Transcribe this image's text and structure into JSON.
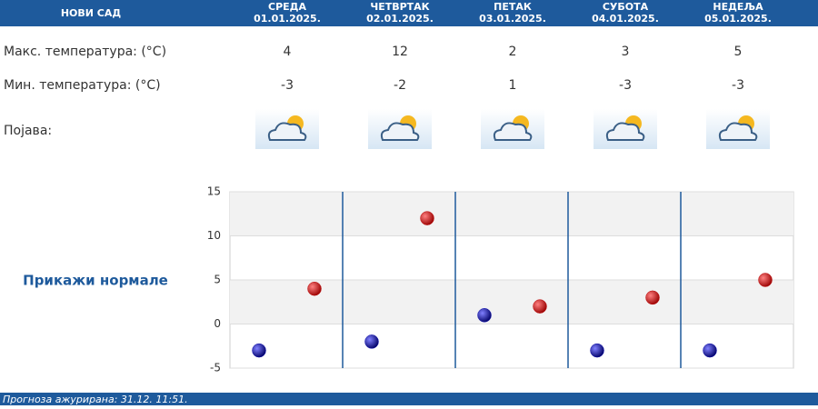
{
  "header": {
    "city": "НОВИ САД"
  },
  "days": [
    {
      "day": "СРЕДА",
      "date": "01.01.2025."
    },
    {
      "day": "ЧЕТВРТАК",
      "date": "02.01.2025."
    },
    {
      "day": "ПЕТАК",
      "date": "03.01.2025."
    },
    {
      "day": "СУБОТА",
      "date": "04.01.2025."
    },
    {
      "day": "НЕДЕЉА",
      "date": "05.01.2025."
    }
  ],
  "rows": {
    "max_label": "Макс. температура: (°C)",
    "min_label": "Мин. температура: (°C)",
    "phenomenon_label": "Појава:"
  },
  "normals_link": "Прикажи нормале",
  "footer": "Прогноза ажурирана:  31.12. 11:51.",
  "chart_data": {
    "type": "scatter",
    "series": [
      {
        "name": "Мин. температура",
        "color": "#1010b0",
        "values": [
          -3,
          -2,
          1,
          -3,
          -3
        ]
      },
      {
        "name": "Макс. температура",
        "color": "#c01010",
        "values": [
          4,
          12,
          2,
          3,
          5
        ]
      }
    ],
    "ylim": [
      -5,
      15
    ],
    "yticks": [
      -5,
      0,
      5,
      10,
      15
    ]
  }
}
